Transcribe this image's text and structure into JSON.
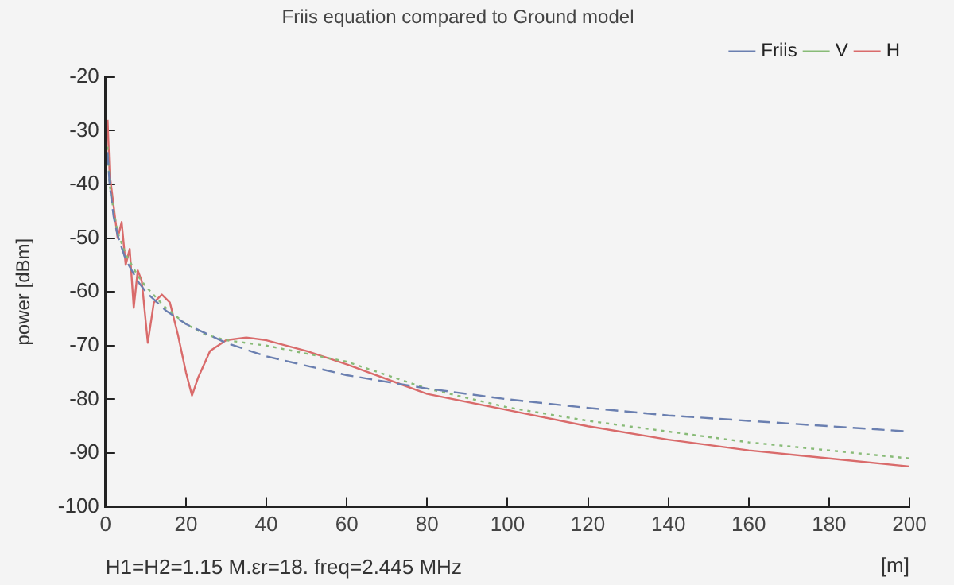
{
  "chart_data": {
    "type": "line",
    "title": "Friis equation compared to Ground model",
    "xlabel": "[m]",
    "ylabel": "power [dBm]",
    "annotations": [
      "H1=H2=1.15 M.εr=18. freq=2.445 MHz"
    ],
    "xlim": [
      0,
      200
    ],
    "xticks": [
      0,
      20,
      40,
      60,
      80,
      100,
      120,
      140,
      160,
      180,
      200
    ],
    "ylim": [
      -100,
      -20
    ],
    "yticks": [
      -100,
      -90,
      -80,
      -70,
      -60,
      -50,
      -40,
      -30,
      -20
    ],
    "grid": false,
    "legend": "top right",
    "marker": "none",
    "series": [
      {
        "name": "Friis",
        "color": "#6a7fb0",
        "line_style": "dashed",
        "x": [
          0.5,
          1,
          2,
          3,
          5,
          8,
          10,
          15,
          20,
          30,
          40,
          60,
          80,
          100,
          120,
          140,
          160,
          180,
          200
        ],
        "values": [
          -34,
          -40,
          -46,
          -49.5,
          -54,
          -58,
          -60,
          -63.5,
          -66,
          -69.5,
          -72,
          -75.5,
          -78,
          -80,
          -81.6,
          -83,
          -84,
          -85,
          -86
        ]
      },
      {
        "name": "V",
        "color": "#88bb77",
        "line_style": "dotted",
        "x": [
          0.5,
          1,
          2,
          3,
          5,
          8,
          10,
          15,
          20,
          25,
          30,
          40,
          50,
          60,
          80,
          100,
          120,
          140,
          160,
          180,
          200
        ],
        "values": [
          -33,
          -40,
          -45,
          -49,
          -53,
          -57,
          -59,
          -63,
          -66,
          -68,
          -69,
          -70,
          -71.5,
          -73,
          -78,
          -81.5,
          -84,
          -86,
          -88,
          -89.5,
          -91
        ]
      },
      {
        "name": "H",
        "color": "#d96b6b",
        "line_style": "solid",
        "x": [
          0.5,
          1,
          2,
          3,
          4,
          5,
          6,
          7,
          8,
          9,
          10.5,
          12,
          14,
          16,
          18,
          20,
          21.5,
          23,
          26,
          30,
          35,
          40,
          50,
          60,
          80,
          100,
          120,
          140,
          160,
          180,
          200
        ],
        "values": [
          -28,
          -38,
          -44,
          -50,
          -47,
          -55,
          -52,
          -63,
          -56,
          -58,
          -69.5,
          -62,
          -60.5,
          -62,
          -68,
          -75,
          -79.3,
          -76,
          -71,
          -69,
          -68.5,
          -69,
          -71,
          -73.5,
          -79,
          -82,
          -85,
          -87.5,
          -89.5,
          -91,
          -92.5
        ]
      }
    ]
  }
}
